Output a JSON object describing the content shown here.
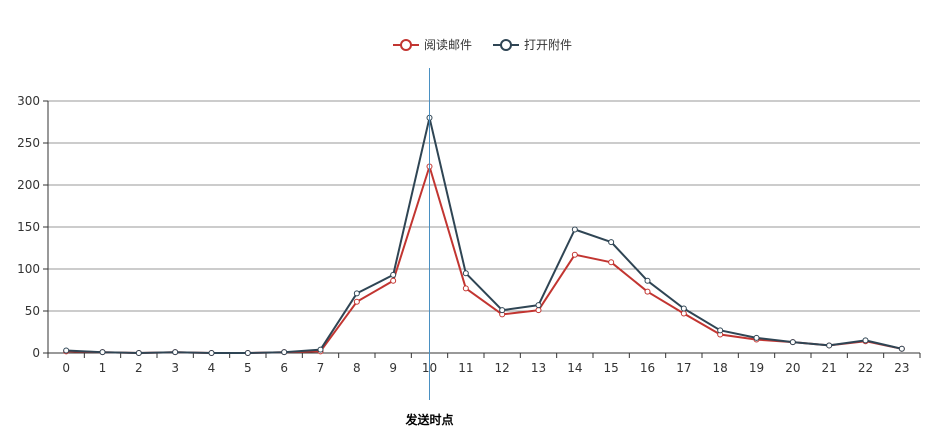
{
  "chart_data": {
    "type": "line",
    "categories": [
      "0",
      "1",
      "2",
      "3",
      "4",
      "5",
      "6",
      "7",
      "8",
      "9",
      "10",
      "11",
      "12",
      "13",
      "14",
      "15",
      "16",
      "17",
      "18",
      "19",
      "20",
      "21",
      "22",
      "23"
    ],
    "series": [
      {
        "name": "阅读邮件",
        "color": "#c23531",
        "values": [
          2,
          1,
          0,
          1,
          0,
          0,
          1,
          2,
          61,
          86,
          222,
          77,
          46,
          51,
          117,
          108,
          73,
          47,
          22,
          16,
          13,
          9,
          14,
          5
        ]
      },
      {
        "name": "打开附件",
        "color": "#2f4554",
        "values": [
          3,
          1,
          0,
          1,
          0,
          0,
          1,
          4,
          71,
          93,
          280,
          95,
          51,
          57,
          147,
          132,
          86,
          53,
          27,
          18,
          13,
          9,
          15,
          5
        ]
      }
    ],
    "ylim": [
      0,
      300
    ],
    "yticks": [
      0,
      50,
      100,
      150,
      200,
      250,
      300
    ],
    "grid": true,
    "legend": "top-center",
    "marker": {
      "x": "10",
      "label": "发送时点",
      "color": "#4a90c2"
    }
  }
}
